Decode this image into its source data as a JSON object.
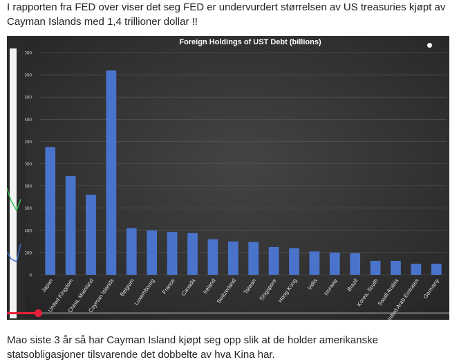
{
  "article": {
    "intro_text": "I rapporten fra FED over viser det seg FED er undervurdert størrelsen av US treasuries kjøpt av Cayman Islands med 1,4 trillioner dollar !!",
    "outro_text": "Mao siste 3 år så har Cayman Island kjøpt seg opp slik at de holder amerikanske statsobligasjoner tilsvarende det dobbelte av hva Kina har."
  },
  "video_player": {
    "progress_fraction": 0.07
  },
  "colors": {
    "bar": "#4a74cc",
    "chart_bg": "#3a3a3a",
    "progress": "#e8203a"
  },
  "chart_data": {
    "type": "bar",
    "title": "Foreign Holdings of UST Debt (billions)",
    "xlabel": "",
    "ylabel": "",
    "categories": [
      "Japan",
      "United Kingdom",
      "China, Mainland",
      "Cayman Islands",
      "Belgium",
      "Luxembourg",
      "France",
      "Canada",
      "Ireland",
      "Switzerland",
      "Taiwan",
      "Singapore",
      "Hong Kong",
      "India",
      "Norway",
      "Brazil",
      "Korea, South",
      "Saudi Arabia",
      "United Arab Emirates",
      "Germany"
    ],
    "values": [
      1150,
      890,
      720,
      1840,
      420,
      400,
      385,
      375,
      320,
      300,
      295,
      250,
      240,
      210,
      200,
      195,
      125,
      125,
      100,
      100
    ],
    "ylim": [
      0,
      2000
    ],
    "yticks": [
      "0",
      "200",
      "400",
      "600",
      "800",
      "1000",
      "1200",
      "1400",
      "1600",
      "1800",
      "2000"
    ],
    "grid": true,
    "legend": "none"
  }
}
